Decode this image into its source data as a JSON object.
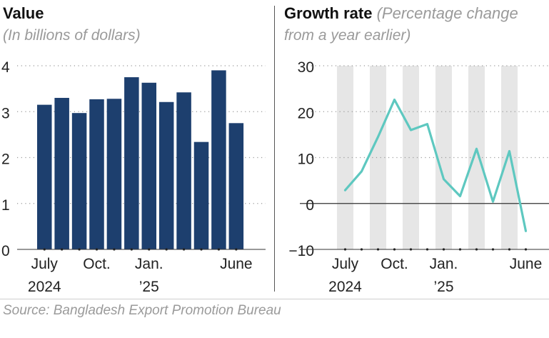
{
  "left": {
    "title": "Value",
    "subtitle": "(In billions of dollars)"
  },
  "right": {
    "title": "Growth rate",
    "subtitle_line1": "(Percentage change",
    "subtitle_line2": "from a year earlier)"
  },
  "source": "Source: Bangladesh Export Promotion Bureau",
  "colors": {
    "bar": "#1d3f6e",
    "line": "#5ec8c0",
    "shade": "#e6e6e6",
    "grid": "#9a9a9a",
    "zero": "#333333"
  },
  "chart_data": [
    {
      "type": "bar",
      "title": "Value",
      "subtitle": "(In billions of dollars)",
      "categories": [
        "Jul 2024",
        "Aug 2024",
        "Sep 2024",
        "Oct 2024",
        "Nov 2024",
        "Dec 2024",
        "Jan 2025",
        "Feb 2025",
        "Mar 2025",
        "Apr 2025",
        "May 2025",
        "Jun 2025"
      ],
      "values": [
        3.15,
        3.3,
        2.97,
        3.27,
        3.28,
        3.75,
        3.63,
        3.21,
        3.42,
        2.34,
        3.9,
        2.75
      ],
      "ylim": [
        0,
        4
      ],
      "yticks": [
        0,
        1,
        2,
        3,
        4
      ],
      "xtick_labels": [
        {
          "index": 0,
          "line1": "July",
          "line2": "2024"
        },
        {
          "index": 3,
          "line1": "Oct.",
          "line2": ""
        },
        {
          "index": 6,
          "line1": "Jan.",
          "line2": "’25"
        },
        {
          "index": 11,
          "line1": "June",
          "line2": ""
        }
      ],
      "grid": "horizontal dotted"
    },
    {
      "type": "line",
      "title": "Growth rate",
      "subtitle": "(Percentage change from a year earlier)",
      "categories": [
        "Jul 2024",
        "Aug 2024",
        "Sep 2024",
        "Oct 2024",
        "Nov 2024",
        "Dec 2024",
        "Jan 2025",
        "Feb 2025",
        "Mar 2025",
        "Apr 2025",
        "May 2025",
        "Jun 2025"
      ],
      "values": [
        2.9,
        7.0,
        14.5,
        22.6,
        16.0,
        17.3,
        5.3,
        1.6,
        11.9,
        0.4,
        11.4,
        -6.0
      ],
      "ylim": [
        -10,
        30
      ],
      "yticks": [
        -10,
        0,
        10,
        20,
        30
      ],
      "ytick_labels": [
        "−10",
        "0",
        "10",
        "20",
        "30"
      ],
      "xtick_labels": [
        {
          "index": 0,
          "line1": "July",
          "line2": "2024"
        },
        {
          "index": 3,
          "line1": "Oct.",
          "line2": ""
        },
        {
          "index": 6,
          "line1": "Jan.",
          "line2": "’25"
        },
        {
          "index": 11,
          "line1": "June",
          "line2": ""
        }
      ],
      "shaded_months": [
        0,
        2,
        4,
        6,
        8,
        10
      ],
      "grid": "horizontal dotted"
    }
  ]
}
